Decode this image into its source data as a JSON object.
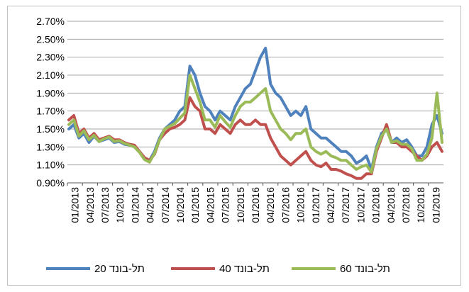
{
  "chart_data": {
    "type": "line",
    "title": "",
    "xlabel": "",
    "ylabel": "",
    "ylim": [
      0.9,
      2.7
    ],
    "yticks": [
      "0.90%",
      "1.10%",
      "1.30%",
      "1.50%",
      "1.70%",
      "1.90%",
      "2.10%",
      "2.30%",
      "2.50%",
      "2.70%"
    ],
    "ytick_values": [
      0.9,
      1.1,
      1.3,
      1.5,
      1.7,
      1.9,
      2.1,
      2.3,
      2.5,
      2.7
    ],
    "xticks": [
      "01/2013",
      "04/2013",
      "07/2013",
      "10/2013",
      "01/2014",
      "04/2014",
      "07/2014",
      "10/2014",
      "01/2015",
      "04/2015",
      "07/2015",
      "10/2015",
      "01/2016",
      "04/2016",
      "07/2016",
      "10/2016",
      "01/2017",
      "04/2017",
      "07/2017",
      "10/2017",
      "01/2018",
      "04/2018",
      "07/2018",
      "10/2018",
      "01/2019"
    ],
    "grid": true,
    "legend": "bottom",
    "x": [
      "01/2013",
      "02/2013",
      "03/2013",
      "04/2013",
      "05/2013",
      "06/2013",
      "07/2013",
      "08/2013",
      "09/2013",
      "10/2013",
      "11/2013",
      "12/2013",
      "01/2014",
      "02/2014",
      "03/2014",
      "04/2014",
      "05/2014",
      "06/2014",
      "07/2014",
      "08/2014",
      "09/2014",
      "10/2014",
      "11/2014",
      "12/2014",
      "01/2015",
      "02/2015",
      "03/2015",
      "04/2015",
      "05/2015",
      "06/2015",
      "07/2015",
      "08/2015",
      "09/2015",
      "10/2015",
      "11/2015",
      "12/2015",
      "01/2016",
      "02/2016",
      "03/2016",
      "04/2016",
      "05/2016",
      "06/2016",
      "07/2016",
      "08/2016",
      "09/2016",
      "10/2016",
      "11/2016",
      "12/2016",
      "01/2017",
      "02/2017",
      "03/2017",
      "04/2017",
      "05/2017",
      "06/2017",
      "07/2017",
      "08/2017",
      "09/2017",
      "10/2017",
      "11/2017",
      "12/2017",
      "01/2018",
      "02/2018",
      "03/2018",
      "04/2018",
      "05/2018",
      "06/2018",
      "07/2018",
      "08/2018",
      "09/2018",
      "10/2018",
      "11/2018",
      "12/2018",
      "01/2019",
      "02/2019",
      "03/2019"
    ],
    "series": [
      {
        "name": "תל-בונד 20",
        "color": "#4f81bd",
        "values": [
          1.5,
          1.55,
          1.4,
          1.45,
          1.35,
          1.42,
          1.36,
          1.38,
          1.4,
          1.35,
          1.36,
          1.33,
          1.32,
          1.3,
          1.25,
          1.18,
          1.15,
          1.25,
          1.4,
          1.5,
          1.55,
          1.6,
          1.7,
          1.75,
          2.2,
          2.1,
          1.9,
          1.75,
          1.7,
          1.6,
          1.7,
          1.65,
          1.6,
          1.75,
          1.85,
          1.95,
          2.0,
          2.15,
          2.3,
          2.4,
          2.0,
          1.9,
          1.85,
          1.75,
          1.65,
          1.7,
          1.65,
          1.75,
          1.5,
          1.45,
          1.4,
          1.4,
          1.35,
          1.3,
          1.25,
          1.25,
          1.2,
          1.12,
          1.15,
          1.2,
          1.05,
          1.3,
          1.45,
          1.5,
          1.35,
          1.4,
          1.35,
          1.38,
          1.3,
          1.2,
          1.2,
          1.3,
          1.55,
          1.65,
          1.45
        ]
      },
      {
        "name": "תל-בונד 40",
        "color": "#c0504d",
        "values": [
          1.6,
          1.65,
          1.45,
          1.5,
          1.4,
          1.45,
          1.38,
          1.4,
          1.42,
          1.38,
          1.38,
          1.35,
          1.33,
          1.32,
          1.25,
          1.18,
          1.15,
          1.22,
          1.38,
          1.45,
          1.5,
          1.52,
          1.55,
          1.6,
          1.85,
          1.75,
          1.7,
          1.5,
          1.5,
          1.45,
          1.55,
          1.5,
          1.45,
          1.55,
          1.6,
          1.55,
          1.55,
          1.6,
          1.55,
          1.55,
          1.4,
          1.3,
          1.2,
          1.15,
          1.1,
          1.15,
          1.2,
          1.25,
          1.15,
          1.1,
          1.08,
          1.12,
          1.05,
          1.05,
          1.03,
          1.0,
          0.98,
          0.95,
          0.95,
          1.0,
          1.0,
          1.25,
          1.4,
          1.55,
          1.35,
          1.35,
          1.3,
          1.3,
          1.25,
          1.2,
          1.15,
          1.2,
          1.3,
          1.35,
          1.25
        ]
      },
      {
        "name": "תל-בונד 60",
        "color": "#9bbb59",
        "values": [
          1.55,
          1.6,
          1.42,
          1.48,
          1.38,
          1.43,
          1.36,
          1.39,
          1.41,
          1.36,
          1.37,
          1.34,
          1.32,
          1.3,
          1.24,
          1.16,
          1.13,
          1.23,
          1.38,
          1.5,
          1.53,
          1.56,
          1.62,
          1.68,
          2.1,
          1.95,
          1.8,
          1.6,
          1.6,
          1.52,
          1.65,
          1.58,
          1.52,
          1.65,
          1.75,
          1.8,
          1.8,
          1.85,
          1.9,
          1.95,
          1.7,
          1.6,
          1.5,
          1.45,
          1.38,
          1.45,
          1.45,
          1.5,
          1.3,
          1.25,
          1.22,
          1.25,
          1.2,
          1.18,
          1.15,
          1.15,
          1.1,
          1.05,
          1.08,
          1.1,
          1.02,
          1.28,
          1.42,
          1.5,
          1.35,
          1.37,
          1.33,
          1.33,
          1.28,
          1.15,
          1.15,
          1.22,
          1.4,
          1.9,
          1.35
        ]
      }
    ]
  }
}
